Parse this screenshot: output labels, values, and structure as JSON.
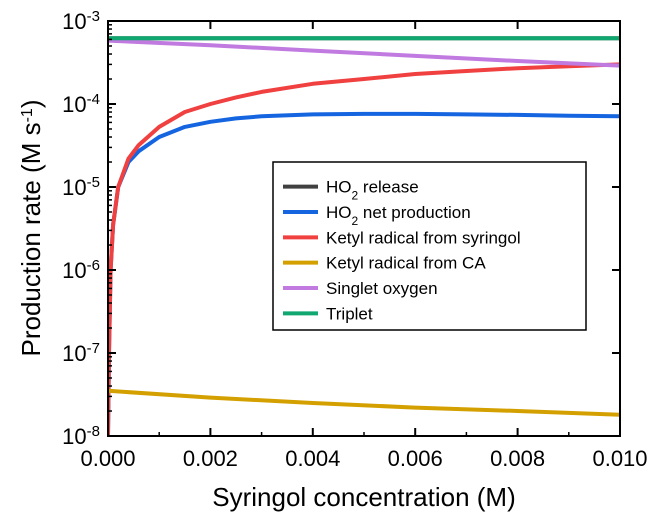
{
  "chart_data": {
    "type": "line",
    "xlabel": "Syringol concentration (M)",
    "ylabel": "Production rate (M s^-1)",
    "ylabel_text": "Production rate (M s",
    "ylabel_sup": "-1",
    "ylabel_close": ")",
    "y_scale": "log",
    "xlim": [
      0.0,
      0.01
    ],
    "ylim": [
      1e-08,
      0.001
    ],
    "x_ticks": [
      "0.000",
      "0.002",
      "0.004",
      "0.006",
      "0.008",
      "0.010"
    ],
    "x_tick_values": [
      0.0,
      0.002,
      0.004,
      0.006,
      0.008,
      0.01
    ],
    "y_ticks": [
      {
        "base": "10",
        "exp": "-8",
        "value": 1e-08
      },
      {
        "base": "10",
        "exp": "-7",
        "value": 1e-07
      },
      {
        "base": "10",
        "exp": "-6",
        "value": 1e-06
      },
      {
        "base": "10",
        "exp": "-5",
        "value": 1e-05
      },
      {
        "base": "10",
        "exp": "-4",
        "value": 0.0001
      },
      {
        "base": "10",
        "exp": "-3",
        "value": 0.001
      }
    ],
    "grid": false,
    "legend_position": "center-right",
    "series": [
      {
        "name": "HO2 release",
        "label_parts": [
          "HO",
          "2",
          " release"
        ],
        "color": "#404040",
        "x": [
          0.0,
          0.01
        ],
        "y": [
          0.00062,
          0.00062
        ]
      },
      {
        "name": "HO2 net production",
        "label_parts": [
          "HO",
          "2",
          " net production"
        ],
        "color": "#1565e0",
        "x": [
          0.0,
          2e-05,
          5e-05,
          0.0001,
          0.0002,
          0.0004,
          0.0006,
          0.001,
          0.0015,
          0.002,
          0.0025,
          0.003,
          0.004,
          0.005,
          0.006,
          0.007,
          0.008,
          0.009,
          0.01
        ],
        "y": [
          1e-08,
          1e-07,
          1e-06,
          3.5e-06,
          1e-05,
          2e-05,
          2.7e-05,
          4e-05,
          5.3e-05,
          6.1e-05,
          6.7e-05,
          7.1e-05,
          7.5e-05,
          7.6e-05,
          7.6e-05,
          7.5e-05,
          7.4e-05,
          7.2e-05,
          7.1e-05
        ]
      },
      {
        "name": "Ketyl radical from syringol",
        "label_parts": [
          "Ketyl radical from syringol"
        ],
        "color": "#f04040",
        "x": [
          0.0,
          2e-05,
          5e-05,
          0.0001,
          0.0002,
          0.0004,
          0.0006,
          0.001,
          0.0015,
          0.002,
          0.0025,
          0.003,
          0.004,
          0.005,
          0.006,
          0.007,
          0.008,
          0.009,
          0.01
        ],
        "y": [
          1e-08,
          1e-07,
          1e-06,
          3.5e-06,
          1e-05,
          2.2e-05,
          3.2e-05,
          5.3e-05,
          8e-05,
          0.0001,
          0.00012,
          0.00014,
          0.000175,
          0.0002,
          0.00023,
          0.00025,
          0.00027,
          0.000285,
          0.0003
        ]
      },
      {
        "name": "Ketyl radical from CA",
        "label_parts": [
          "Ketyl radical from CA"
        ],
        "color": "#d4a000",
        "x": [
          0.0,
          0.002,
          0.004,
          0.006,
          0.008,
          0.01
        ],
        "y": [
          3.5e-08,
          2.9e-08,
          2.5e-08,
          2.2e-08,
          2e-08,
          1.8e-08
        ]
      },
      {
        "name": "Singlet oxygen",
        "label_parts": [
          "Singlet oxygen"
        ],
        "color": "#c07ae0",
        "x": [
          0.0,
          0.002,
          0.004,
          0.006,
          0.008,
          0.01
        ],
        "y": [
          0.00058,
          0.00051,
          0.00044,
          0.00038,
          0.00033,
          0.00029
        ]
      },
      {
        "name": "Triplet",
        "label_parts": [
          "Triplet"
        ],
        "color": "#10a870",
        "x": [
          0.0,
          0.01
        ],
        "y": [
          0.00062,
          0.00062
        ]
      }
    ]
  }
}
